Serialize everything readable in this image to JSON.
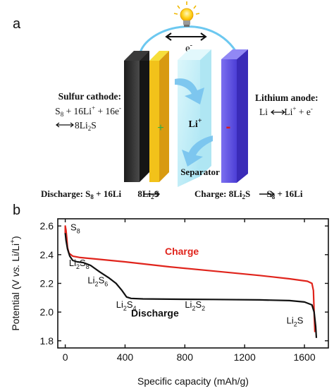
{
  "panel_a": {
    "label": "a",
    "electron": "e",
    "electron_sup": "-",
    "cathode_title": "Sulfur cathode:",
    "cathode_eq_line1": {
      "p1": "S",
      "s1": "8",
      "p2": " + 16Li",
      "sup1": "+",
      "p3": " + 16e",
      "sup2": "-"
    },
    "cathode_eq_line2": {
      "p1": "8Li",
      "s1": "2",
      "p2": "S"
    },
    "anode_title": "Lithium anode:",
    "anode_eq": {
      "p1": "Li ",
      "p2": " Li",
      "sup1": "+",
      "p3": " + e",
      "sup2": "-"
    },
    "li_ion": "Li",
    "li_ion_sup": "+",
    "plus_sign": "+",
    "minus_sign": "-",
    "separator_label": "Separator",
    "discharge_eq": {
      "p1": "Discharge: S",
      "s1": "8",
      "p2": " + 16Li ",
      "p3": " 8Li",
      "s2": "2",
      "p4": "S"
    },
    "charge_eq": {
      "p1": "Charge: 8Li",
      "s1": "2",
      "p2": "S ",
      "p3": " S",
      "s2": "8",
      "p4": " + 16Li"
    },
    "colors": {
      "cathode_face": "#2a2a2a",
      "sulfur": "#f2c21a",
      "separator": "#b8ecf6",
      "anode": "#6a5be8",
      "wire": "#6cc8f0",
      "arrow": "#79c4ee"
    },
    "icons": [
      "light-bulb-icon",
      "double-arrow-icon",
      "ion-arrow-icon"
    ]
  },
  "panel_b": {
    "label": "b",
    "chart_data": {
      "type": "line",
      "xlabel": "Specific capacity (mAh/g)",
      "ylabel": {
        "p1": "Potential (V ",
        "p2": "vs.",
        "p3": " Li/Li",
        "sup": "+",
        "p4": ")"
      },
      "xlim": [
        -50,
        1760
      ],
      "ylim": [
        1.75,
        2.65
      ],
      "xticks": [
        0,
        400,
        800,
        1200,
        1600
      ],
      "yticks": [
        1.8,
        2.0,
        2.2,
        2.4,
        2.6
      ],
      "ytick_labels": [
        "1.8",
        "2.0",
        "2.2",
        "2.4",
        "2.6"
      ],
      "series": [
        {
          "name": "Charge",
          "color": "#e0241c",
          "x": [
            1670,
            1665,
            1660,
            1650,
            1620,
            1500,
            1300,
            1000,
            700,
            400,
            200,
            100,
            50,
            25,
            15,
            10,
            5,
            0,
            0,
            5
          ],
          "y": [
            1.86,
            2.0,
            2.15,
            2.2,
            2.215,
            2.232,
            2.255,
            2.285,
            2.315,
            2.35,
            2.37,
            2.38,
            2.39,
            2.41,
            2.45,
            2.52,
            2.57,
            2.6,
            2.55,
            2.53
          ]
        },
        {
          "name": "Discharge",
          "color": "#111111",
          "x": [
            0,
            5,
            15,
            30,
            50,
            80,
            120,
            170,
            230,
            290,
            340,
            380,
            410,
            440,
            520,
            700,
            1000,
            1300,
            1500,
            1600,
            1650,
            1665,
            1675,
            1680
          ],
          "y": [
            2.55,
            2.5,
            2.44,
            2.39,
            2.36,
            2.35,
            2.345,
            2.325,
            2.28,
            2.24,
            2.2,
            2.15,
            2.105,
            2.095,
            2.092,
            2.09,
            2.088,
            2.085,
            2.08,
            2.07,
            2.05,
            2.0,
            1.9,
            1.82
          ]
        }
      ],
      "annotations": [
        {
          "text": "S",
          "sub": "8",
          "x": 35,
          "y": 2.57
        },
        {
          "text": "Li",
          "sub": "2",
          "text2": "S",
          "sub2": "8",
          "x": 25,
          "y": 2.32
        },
        {
          "text": "Li",
          "sub": "2",
          "text2": "S",
          "sub2": "6",
          "x": 150,
          "y": 2.2
        },
        {
          "text": "Li",
          "sub": "2",
          "text2": "S",
          "sub2": "4",
          "x": 340,
          "y": 2.03
        },
        {
          "text": "Li",
          "sub": "2",
          "text2": "S",
          "sub2": "2",
          "x": 800,
          "y": 2.03
        },
        {
          "text": "Li",
          "sub": "2",
          "text2": "S",
          "sub2": "",
          "x": 1480,
          "y": 1.92
        }
      ],
      "legend": [
        {
          "text": "Charge",
          "color": "#e0241c",
          "x": 780,
          "y": 2.4
        },
        {
          "text": "Discharge",
          "color": "#111111",
          "x": 600,
          "y": 1.97
        }
      ]
    }
  }
}
